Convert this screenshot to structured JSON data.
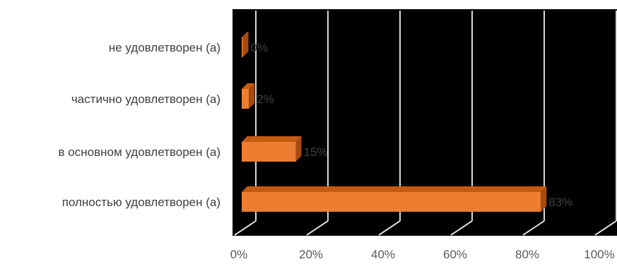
{
  "chart_data": {
    "type": "bar",
    "orientation": "horizontal",
    "style": "3d",
    "categories": [
      "не удовлетворен (а)",
      "частично удовлетворен (а)",
      "в основном удовлетворен (а)",
      "полностью удовлетворен (а)"
    ],
    "values": [
      0,
      2,
      15,
      83
    ],
    "data_labels": [
      "0%",
      "2%",
      "15%",
      "83%"
    ],
    "x_ticks": [
      "0%",
      "20%",
      "40%",
      "60%",
      "80%",
      "100%"
    ],
    "xlim": [
      0,
      100
    ],
    "title": "",
    "xlabel": "",
    "ylabel": "",
    "grid": true,
    "legend": "none",
    "colors": {
      "bar_front": "#ed7d31",
      "bar_top": "#c55a11",
      "bar_side": "#a64a0e",
      "plot_background": "#000000",
      "gridline": "#d9d9d9"
    }
  }
}
